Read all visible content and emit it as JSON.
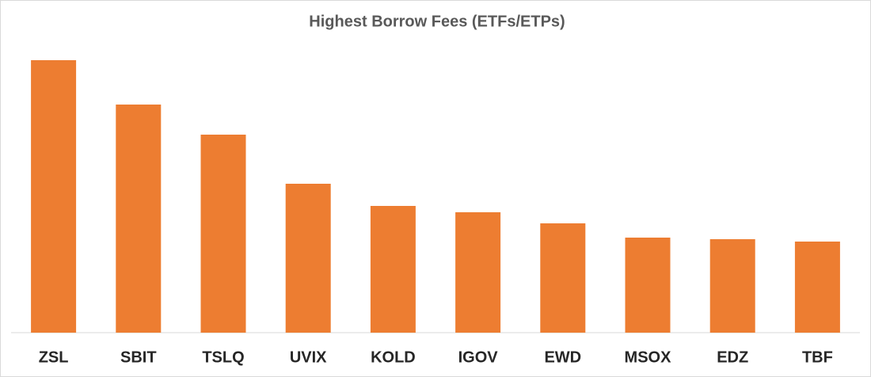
{
  "chart_data": {
    "type": "bar",
    "title": "Highest Borrow Fees (ETFs/ETPs)",
    "categories": [
      "ZSL",
      "SBIT",
      "TSLQ",
      "UVIX",
      "KOLD",
      "IGOV",
      "EWD",
      "MSOX",
      "EDZ",
      "TBF"
    ],
    "values": [
      344,
      288,
      250,
      188,
      160,
      152,
      138,
      120,
      118,
      115
    ],
    "color": "#ed7d31"
  }
}
